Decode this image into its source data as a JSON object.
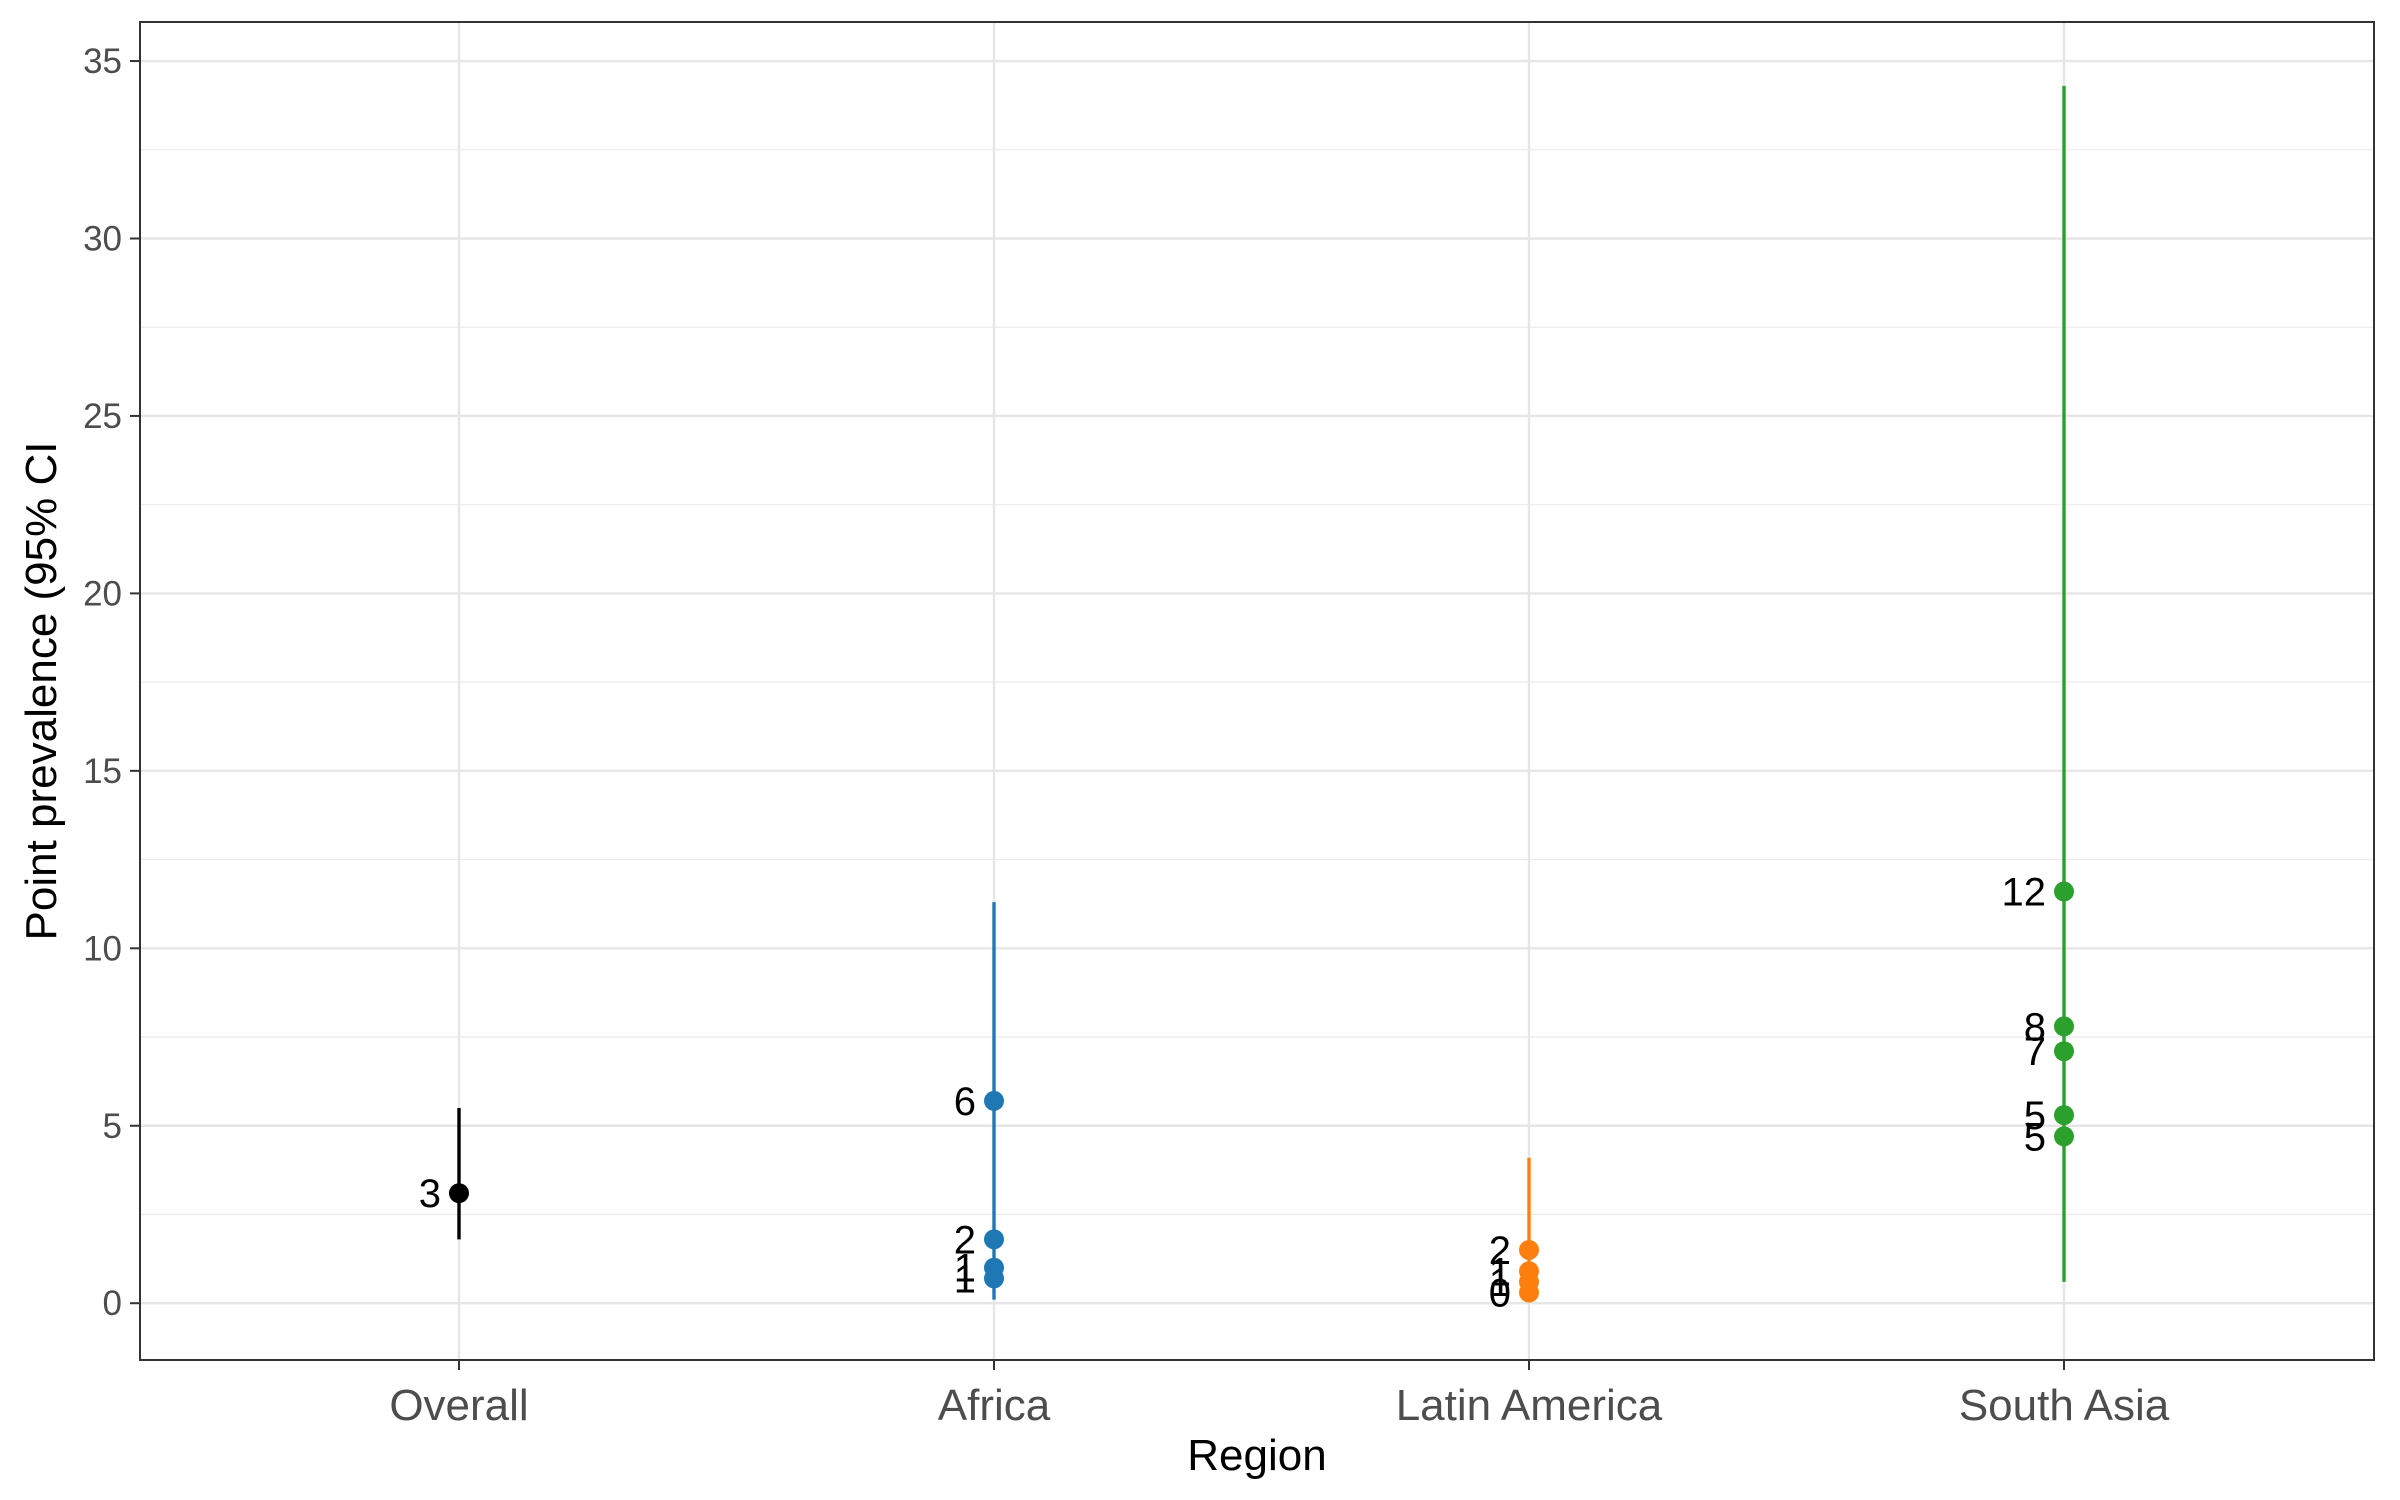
{
  "chart_data": {
    "type": "scatter",
    "title": "",
    "xlabel": "Region",
    "ylabel": "Point prevalence (95% CI",
    "categories": [
      "Overall",
      "Africa",
      "Latin America",
      "South Asia"
    ],
    "ylim": [
      -1.6,
      36.1
    ],
    "yticks": [
      0,
      5,
      10,
      15,
      20,
      25,
      30,
      35
    ],
    "grid": true,
    "legend": "none",
    "series": [
      {
        "category": "Overall",
        "color": "#000000",
        "ci": [
          1.8,
          5.5
        ],
        "points": [
          {
            "y": 3.1,
            "label": "3"
          }
        ]
      },
      {
        "category": "Africa",
        "color": "#1f78b4",
        "ci": [
          0.1,
          11.3
        ],
        "points": [
          {
            "y": 5.7,
            "label": "6"
          },
          {
            "y": 1.8,
            "label": "2"
          },
          {
            "y": 1.0,
            "label": "1"
          },
          {
            "y": 0.7,
            "label": "1"
          }
        ]
      },
      {
        "category": "Latin America",
        "color": "#ff7f0e",
        "ci": [
          0.1,
          4.1
        ],
        "points": [
          {
            "y": 1.5,
            "label": "2"
          },
          {
            "y": 0.9,
            "label": "1"
          },
          {
            "y": 0.6,
            "label": "1"
          },
          {
            "y": 0.3,
            "label": "0"
          }
        ]
      },
      {
        "category": "South Asia",
        "color": "#2ca02c",
        "ci": [
          0.6,
          34.3
        ],
        "points": [
          {
            "y": 11.6,
            "label": "12"
          },
          {
            "y": 7.8,
            "label": "8"
          },
          {
            "y": 7.1,
            "label": "7"
          },
          {
            "y": 5.3,
            "label": "5"
          },
          {
            "y": 4.7,
            "label": "5"
          }
        ]
      }
    ]
  }
}
